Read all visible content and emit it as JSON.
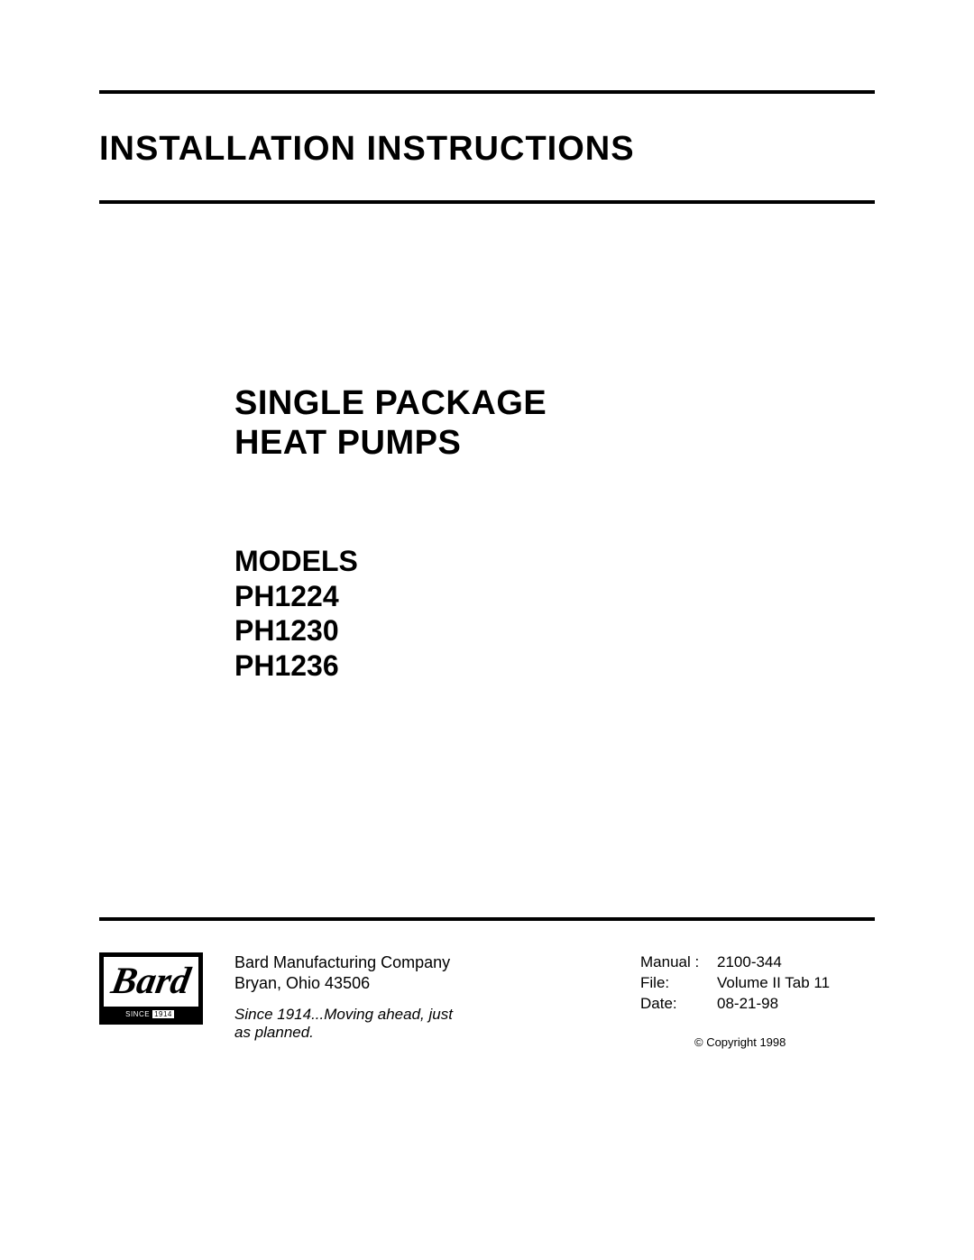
{
  "colors": {
    "background": "#ffffff",
    "text": "#000000",
    "rule": "#000000"
  },
  "typography": {
    "main_title_fontsize": 38,
    "subtitle_fontsize": 38,
    "models_fontsize": 32,
    "body_fontsize": 18,
    "tagline_fontsize": 17,
    "copyright_fontsize": 13
  },
  "main_title": "INSTALLATION INSTRUCTIONS",
  "subtitle": {
    "line1": "SINGLE PACKAGE",
    "line2": "HEAT PUMPS"
  },
  "models": {
    "label": "MODELS",
    "items": [
      "PH1224",
      "PH1230",
      "PH1236"
    ]
  },
  "logo": {
    "brand_text": "Bard",
    "since_text": "SINCE",
    "year_text": "1914"
  },
  "company": {
    "name": "Bard Manufacturing Company",
    "location": "Bryan, Ohio 43506",
    "tagline_line1": "Since 1914...Moving ahead, just",
    "tagline_line2": "as planned."
  },
  "doc_info": {
    "manual_label": "Manual :",
    "manual_value": "2100-344",
    "file_label": "File:",
    "file_value": "Volume II Tab 11",
    "date_label": "Date:",
    "date_value": "08-21-98"
  },
  "copyright": "© Copyright 1998"
}
